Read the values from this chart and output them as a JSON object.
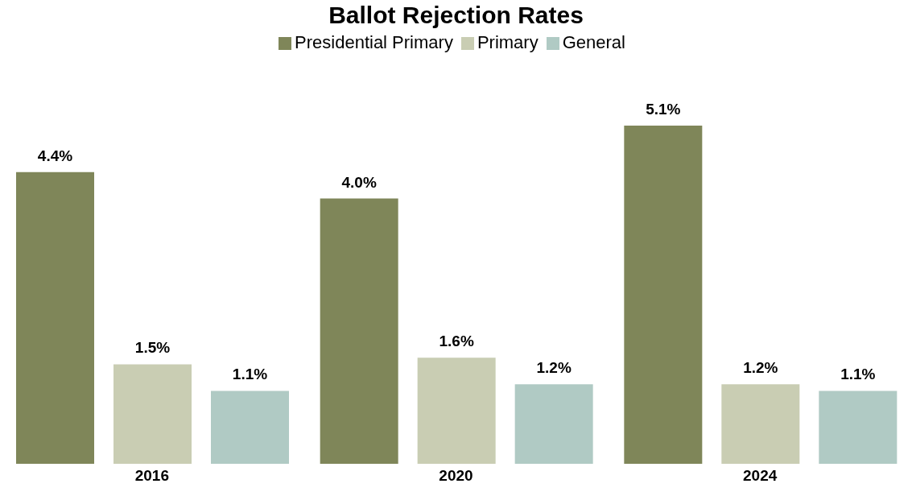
{
  "chart_data": {
    "type": "bar",
    "title": "Ballot Rejection Rates",
    "categories": [
      "2016",
      "2020",
      "2024"
    ],
    "series": [
      {
        "name": "Presidential Primary",
        "color": "#7f8659",
        "values": [
          4.4,
          4.0,
          5.1
        ],
        "value_labels": [
          "4.4%",
          "4.0%",
          "5.1%"
        ]
      },
      {
        "name": "Primary",
        "color": "#c9cdb3",
        "values": [
          1.5,
          1.6,
          1.2
        ],
        "value_labels": [
          "1.5%",
          "1.6%",
          "1.2%"
        ]
      },
      {
        "name": "General",
        "color": "#b0cac4",
        "values": [
          1.1,
          1.2,
          1.1
        ],
        "value_labels": [
          "1.1%",
          "1.2%",
          "1.1%"
        ]
      }
    ],
    "legend": "top",
    "tick_labels": "x"
  }
}
